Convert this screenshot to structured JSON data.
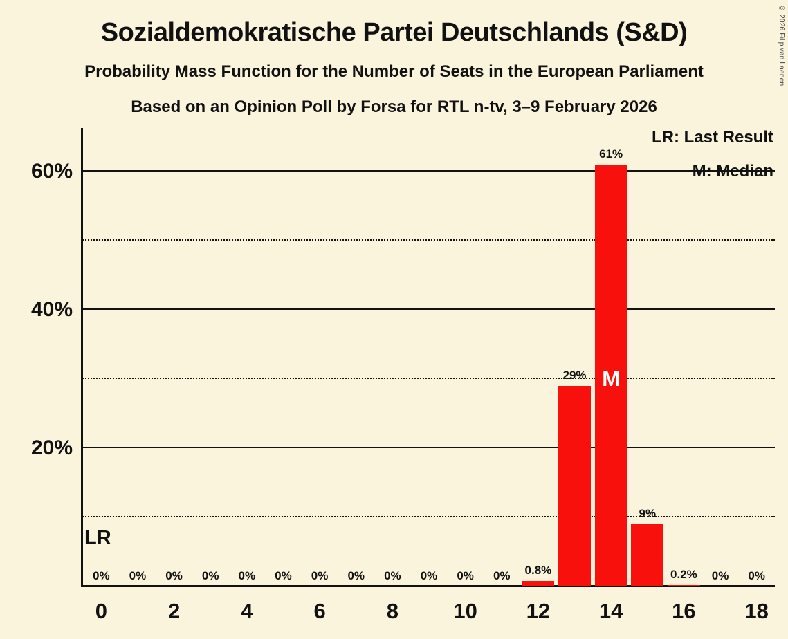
{
  "header": {
    "title": "Sozialdemokratische Partei Deutschlands (S&D)",
    "subtitle1": "Probability Mass Function for the Number of Seats in the European Parliament",
    "subtitle2": "Based on an Opinion Poll by Forsa for RTL n-tv, 3–9 February 2026"
  },
  "legend": {
    "last_result": "LR: Last Result",
    "median": "M: Median"
  },
  "copyright": "© 2026 Filip van Laenen",
  "colors": {
    "background": "#FBF4DC",
    "bar": "#F8100D",
    "text": "#111111"
  },
  "chart_data": {
    "type": "bar",
    "title": "Sozialdemokratische Partei Deutschlands (S&D) — Probability Mass Function for the Number of Seats in the European Parliament",
    "x": [
      0,
      1,
      2,
      3,
      4,
      5,
      6,
      7,
      8,
      9,
      10,
      11,
      12,
      13,
      14,
      15,
      16,
      17,
      18
    ],
    "values": [
      0,
      0,
      0,
      0,
      0,
      0,
      0,
      0,
      0,
      0,
      0,
      0,
      0.8,
      29,
      61,
      9,
      0.2,
      0,
      0
    ],
    "labels": [
      "0%",
      "0%",
      "0%",
      "0%",
      "0%",
      "0%",
      "0%",
      "0%",
      "0%",
      "0%",
      "0%",
      "0%",
      "0.8%",
      "29%",
      "61%",
      "9%",
      "0.2%",
      "0%",
      "0%"
    ],
    "median_seat": 14,
    "median_marker": "M",
    "last_result_label": "LR",
    "ylim": [
      0,
      66.3
    ],
    "dotted_ticks": [
      10,
      30,
      50
    ],
    "solid_ticks": [
      20,
      40,
      60
    ],
    "ytick_values": [
      20,
      40,
      60
    ],
    "ytick_labels": [
      "20%",
      "40%",
      "60%"
    ],
    "xticks": [
      0,
      2,
      4,
      6,
      8,
      10,
      12,
      14,
      16,
      18
    ],
    "x_tick_labels": [
      "0",
      "2",
      "4",
      "6",
      "8",
      "10",
      "12",
      "14",
      "16",
      "18"
    ],
    "grid": "horizontal-only",
    "legend_position": "top-right"
  }
}
